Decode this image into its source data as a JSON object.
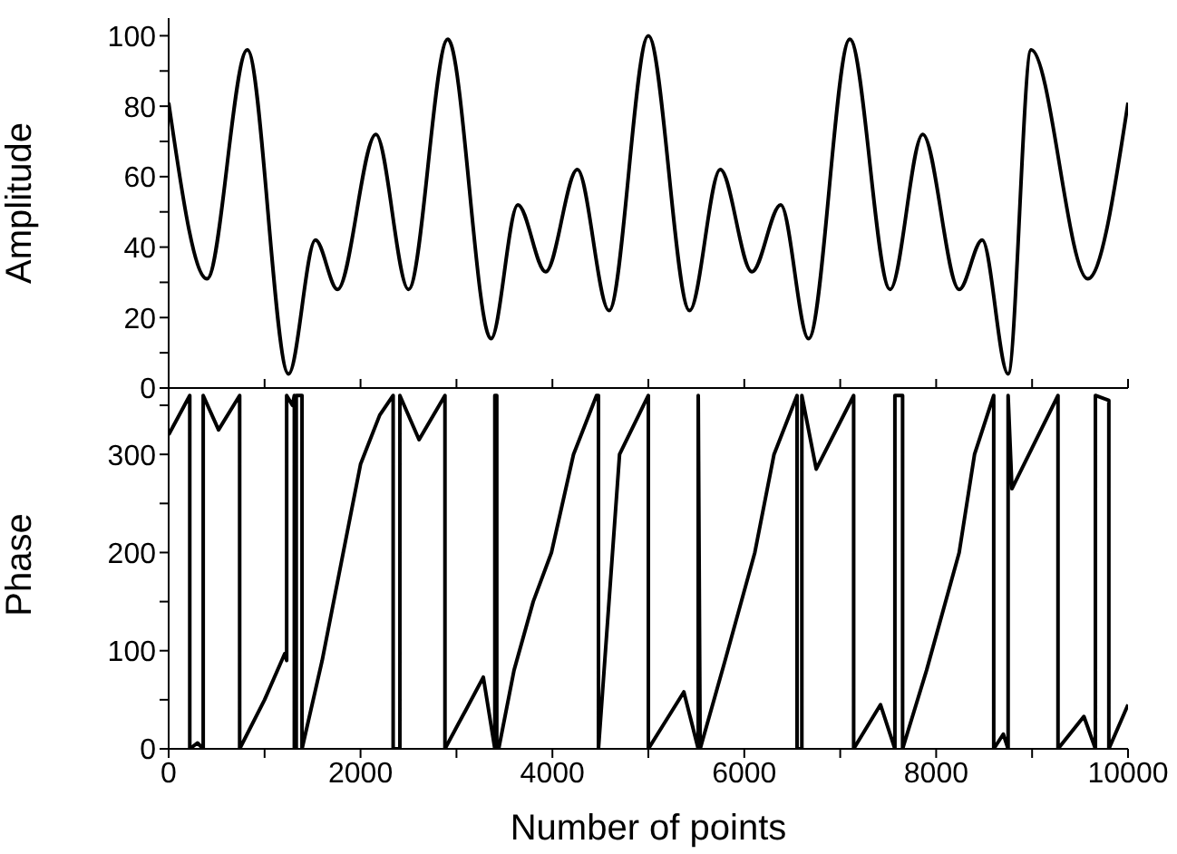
{
  "chart_data": [
    {
      "type": "line",
      "ylabel": "Amplitude",
      "xlim": [
        0,
        10000
      ],
      "ylim": [
        0,
        105
      ],
      "xticks": [
        0,
        {
          "value": 1000,
          "label": null
        },
        2000,
        {
          "value": 3000,
          "label": null
        },
        4000,
        {
          "value": 5000,
          "label": null
        },
        6000,
        {
          "value": 7000,
          "label": null
        },
        8000,
        {
          "value": 9000,
          "label": null
        },
        10000
      ],
      "yticks": [
        0,
        {
          "value": 10,
          "label": null
        },
        20,
        {
          "value": 30,
          "label": null
        },
        40,
        {
          "value": 50,
          "label": null
        },
        60,
        {
          "value": 70,
          "label": null
        },
        80,
        {
          "value": 90,
          "label": null
        },
        100
      ],
      "tick_labels": "y",
      "marker": "none",
      "line_style": "solid",
      "x": [
        0,
        400,
        820,
        1250,
        1530,
        1760,
        2160,
        2500,
        2910,
        3360,
        3640,
        3930,
        4260,
        4590,
        5000,
        5430,
        5750,
        6080,
        6380,
        6670,
        7100,
        7520,
        7860,
        8240,
        8480,
        8750,
        8990,
        9580,
        10000
      ],
      "series": [
        {
          "color": "#000000",
          "values": [
            81,
            31,
            96,
            4,
            42,
            28,
            72,
            28,
            99,
            14,
            52,
            33,
            62,
            22,
            100,
            22,
            62,
            33,
            52,
            14,
            99,
            28,
            72,
            28,
            42,
            4,
            96,
            31,
            81
          ]
        }
      ]
    },
    {
      "type": "line",
      "ylabel": "Phase",
      "xlabel": "Number of points",
      "xlim": [
        0,
        10000
      ],
      "ylim": [
        0,
        375
      ],
      "xticks": [
        0,
        {
          "value": 1000,
          "label": null
        },
        2000,
        {
          "value": 3000,
          "label": null
        },
        4000,
        {
          "value": 5000,
          "label": null
        },
        6000,
        {
          "value": 7000,
          "label": null
        },
        8000,
        {
          "value": 9000,
          "label": null
        },
        10000
      ],
      "yticks": [
        0,
        {
          "value": 50,
          "label": null
        },
        100,
        {
          "value": 150,
          "label": null
        },
        200,
        {
          "value": 250,
          "label": null
        },
        300,
        {
          "value": 350,
          "label": null
        }
      ],
      "marker": "none",
      "line_style": "solid",
      "x": [
        0,
        220,
        220,
        300,
        360,
        360,
        520,
        740,
        740,
        1000,
        1210,
        1230,
        1230,
        1290,
        1310,
        1310,
        1330,
        1330,
        1390,
        1390,
        1600,
        1820,
        2000,
        2200,
        2340,
        2340,
        2410,
        2410,
        2610,
        2880,
        2880,
        3100,
        3280,
        3400,
        3400,
        3420,
        3420,
        3440,
        3600,
        3800,
        3990,
        4220,
        4460,
        4480,
        4480,
        4700,
        5000,
        5000,
        5370,
        5520,
        5520,
        5540,
        5800,
        6110,
        6310,
        6550,
        6550,
        6600,
        6600,
        6750,
        7140,
        7140,
        7420,
        7570,
        7570,
        7650,
        7650,
        7900,
        8240,
        8400,
        8600,
        8600,
        8700,
        8750,
        8750,
        8790,
        9270,
        9270,
        9540,
        9660,
        9660,
        9800,
        9800,
        10000
      ],
      "series": [
        {
          "color": "#000000",
          "values": [
            320,
            360,
            0,
            6,
            0,
            360,
            325,
            360,
            0,
            50,
            97,
            90,
            360,
            350,
            360,
            0,
            0,
            360,
            360,
            0,
            90,
            200,
            290,
            340,
            360,
            0,
            0,
            360,
            315,
            360,
            0,
            40,
            73,
            0,
            360,
            360,
            0,
            0,
            80,
            150,
            200,
            300,
            360,
            360,
            0,
            300,
            360,
            0,
            58,
            0,
            360,
            0,
            90,
            200,
            300,
            360,
            0,
            0,
            360,
            285,
            360,
            0,
            45,
            0,
            360,
            360,
            0,
            80,
            200,
            300,
            360,
            0,
            15,
            0,
            360,
            265,
            360,
            0,
            33,
            0,
            360,
            355,
            0,
            45
          ]
        }
      ]
    }
  ]
}
